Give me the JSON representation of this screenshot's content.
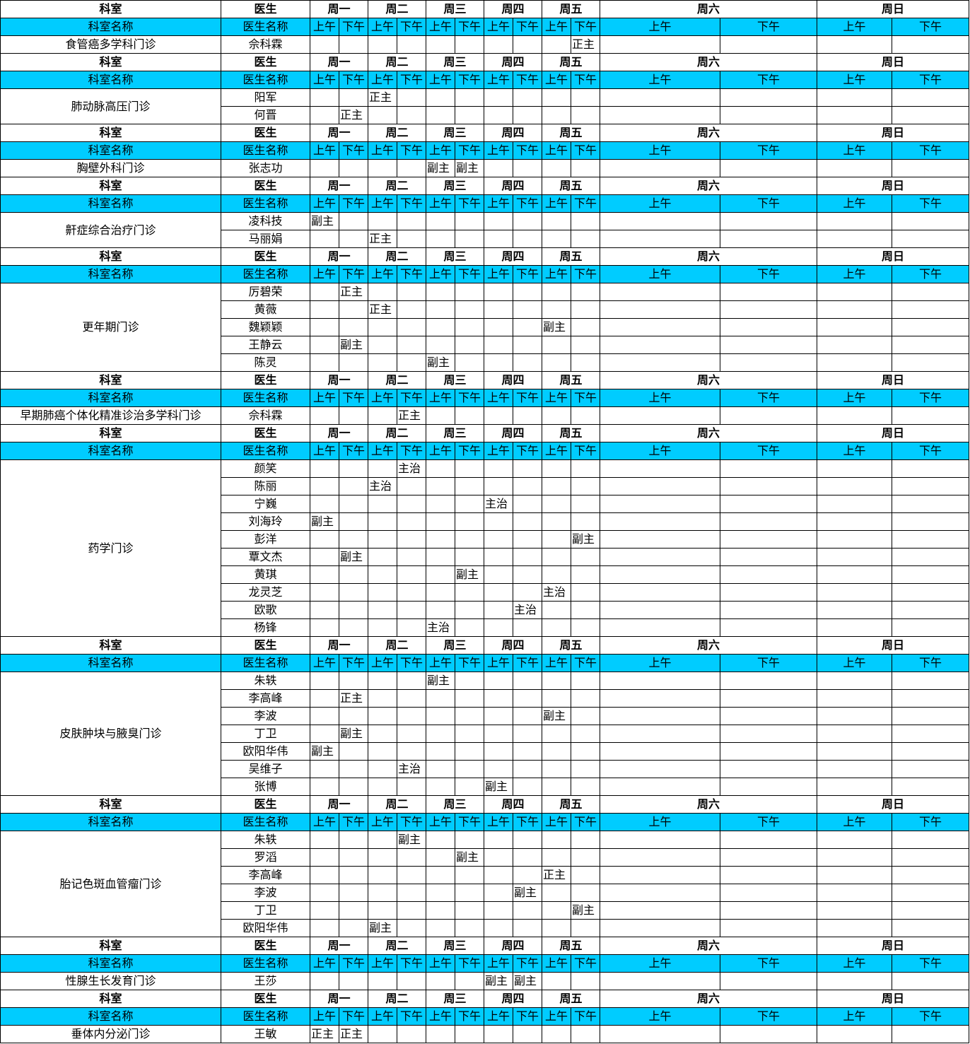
{
  "header": {
    "dept": "科室",
    "doctor": "医生",
    "days": [
      "周一",
      "周二",
      "周三",
      "周四",
      "周五",
      "周六",
      "周日"
    ]
  },
  "subheader": {
    "dept_name": "科室名称",
    "doctor_name": "医生名称",
    "am": "上午",
    "pm": "下午"
  },
  "colors": {
    "subheader_bg": "#00CCFF"
  },
  "slot_order": [
    "周一上午",
    "周一下午",
    "周二上午",
    "周二下午",
    "周三上午",
    "周三下午",
    "周四上午",
    "周四下午",
    "周五上午",
    "周五下午"
  ],
  "blocks": [
    {
      "dept": "食管癌多学科门诊",
      "doctors": [
        {
          "name": "佘科霖",
          "slots": [
            "",
            "",
            "",
            "",
            "",
            "",
            "",
            "",
            "",
            "正主"
          ]
        }
      ]
    },
    {
      "dept": "肺动脉高压门诊",
      "doctors": [
        {
          "name": "阳军",
          "slots": [
            "",
            "",
            "正主",
            "",
            "",
            "",
            "",
            "",
            "",
            ""
          ]
        },
        {
          "name": "何晋",
          "slots": [
            "",
            "正主",
            "",
            "",
            "",
            "",
            "",
            "",
            "",
            ""
          ]
        }
      ]
    },
    {
      "dept": "胸壁外科门诊",
      "doctors": [
        {
          "name": "张志功",
          "slots": [
            "",
            "",
            "",
            "",
            "副主",
            "副主",
            "",
            "",
            "",
            ""
          ]
        }
      ]
    },
    {
      "dept": "鼾症综合治疗门诊",
      "doctors": [
        {
          "name": "凌科技",
          "slots": [
            "副主",
            "",
            "",
            "",
            "",
            "",
            "",
            "",
            "",
            ""
          ]
        },
        {
          "name": "马丽娟",
          "slots": [
            "",
            "",
            "正主",
            "",
            "",
            "",
            "",
            "",
            "",
            ""
          ]
        }
      ]
    },
    {
      "dept": "更年期门诊",
      "doctors": [
        {
          "name": "厉碧荣",
          "slots": [
            "",
            "正主",
            "",
            "",
            "",
            "",
            "",
            "",
            "",
            ""
          ]
        },
        {
          "name": "黄薇",
          "slots": [
            "",
            "",
            "正主",
            "",
            "",
            "",
            "",
            "",
            "",
            ""
          ]
        },
        {
          "name": "魏颖颖",
          "slots": [
            "",
            "",
            "",
            "",
            "",
            "",
            "",
            "",
            "副主",
            ""
          ]
        },
        {
          "name": "王静云",
          "slots": [
            "",
            "副主",
            "",
            "",
            "",
            "",
            "",
            "",
            "",
            ""
          ]
        },
        {
          "name": "陈灵",
          "slots": [
            "",
            "",
            "",
            "",
            "副主",
            "",
            "",
            "",
            "",
            ""
          ]
        }
      ]
    },
    {
      "dept": "早期肺癌个体化精准诊治多学科门诊",
      "doctors": [
        {
          "name": "佘科霖",
          "slots": [
            "",
            "",
            "",
            "正主",
            "",
            "",
            "",
            "",
            "",
            ""
          ]
        }
      ]
    },
    {
      "dept": "药学门诊",
      "doctors": [
        {
          "name": "颜笑",
          "slots": [
            "",
            "",
            "",
            "主治",
            "",
            "",
            "",
            "",
            "",
            ""
          ]
        },
        {
          "name": "陈丽",
          "slots": [
            "",
            "",
            "主治",
            "",
            "",
            "",
            "",
            "",
            "",
            ""
          ]
        },
        {
          "name": "宁巍",
          "slots": [
            "",
            "",
            "",
            "",
            "",
            "",
            "主治",
            "",
            "",
            ""
          ]
        },
        {
          "name": "刘海玲",
          "slots": [
            "副主",
            "",
            "",
            "",
            "",
            "",
            "",
            "",
            "",
            ""
          ]
        },
        {
          "name": "彭洋",
          "slots": [
            "",
            "",
            "",
            "",
            "",
            "",
            "",
            "",
            "",
            "副主"
          ]
        },
        {
          "name": "覃文杰",
          "slots": [
            "",
            "副主",
            "",
            "",
            "",
            "",
            "",
            "",
            "",
            ""
          ]
        },
        {
          "name": "黄琪",
          "slots": [
            "",
            "",
            "",
            "",
            "",
            "副主",
            "",
            "",
            "",
            ""
          ]
        },
        {
          "name": "龙灵芝",
          "slots": [
            "",
            "",
            "",
            "",
            "",
            "",
            "",
            "",
            "主治",
            ""
          ]
        },
        {
          "name": "欧歌",
          "slots": [
            "",
            "",
            "",
            "",
            "",
            "",
            "",
            "主治",
            "",
            ""
          ]
        },
        {
          "name": "杨锋",
          "slots": [
            "",
            "",
            "",
            "",
            "主治",
            "",
            "",
            "",
            "",
            ""
          ]
        }
      ]
    },
    {
      "dept": "皮肤肿块与腋臭门诊",
      "doctors": [
        {
          "name": "朱轶",
          "slots": [
            "",
            "",
            "",
            "",
            "副主",
            "",
            "",
            "",
            "",
            ""
          ]
        },
        {
          "name": "李高峰",
          "slots": [
            "",
            "正主",
            "",
            "",
            "",
            "",
            "",
            "",
            "",
            ""
          ]
        },
        {
          "name": "李波",
          "slots": [
            "",
            "",
            "",
            "",
            "",
            "",
            "",
            "",
            "副主",
            ""
          ]
        },
        {
          "name": "丁卫",
          "slots": [
            "",
            "副主",
            "",
            "",
            "",
            "",
            "",
            "",
            "",
            ""
          ]
        },
        {
          "name": "欧阳华伟",
          "slots": [
            "副主",
            "",
            "",
            "",
            "",
            "",
            "",
            "",
            "",
            ""
          ]
        },
        {
          "name": "吴维子",
          "slots": [
            "",
            "",
            "",
            "主治",
            "",
            "",
            "",
            "",
            "",
            ""
          ]
        },
        {
          "name": "张博",
          "slots": [
            "",
            "",
            "",
            "",
            "",
            "",
            "副主",
            "",
            "",
            ""
          ]
        }
      ]
    },
    {
      "dept": "胎记色斑血管瘤门诊",
      "doctors": [
        {
          "name": "朱轶",
          "slots": [
            "",
            "",
            "",
            "副主",
            "",
            "",
            "",
            "",
            "",
            ""
          ]
        },
        {
          "name": "罗滔",
          "slots": [
            "",
            "",
            "",
            "",
            "",
            "副主",
            "",
            "",
            "",
            ""
          ]
        },
        {
          "name": "李高峰",
          "slots": [
            "",
            "",
            "",
            "",
            "",
            "",
            "",
            "",
            "正主",
            ""
          ]
        },
        {
          "name": "李波",
          "slots": [
            "",
            "",
            "",
            "",
            "",
            "",
            "",
            "副主",
            "",
            ""
          ]
        },
        {
          "name": "丁卫",
          "slots": [
            "",
            "",
            "",
            "",
            "",
            "",
            "",
            "",
            "",
            "副主"
          ]
        },
        {
          "name": "欧阳华伟",
          "slots": [
            "",
            "",
            "副主",
            "",
            "",
            "",
            "",
            "",
            "",
            ""
          ]
        }
      ]
    },
    {
      "dept": "性腺生长发育门诊",
      "doctors": [
        {
          "name": "王莎",
          "slots": [
            "",
            "",
            "",
            "",
            "",
            "",
            "副主",
            "副主",
            "",
            ""
          ]
        }
      ]
    },
    {
      "dept": "垂体内分泌门诊",
      "doctors": [
        {
          "name": "王敏",
          "slots": [
            "正主",
            "正主",
            "",
            "",
            "",
            "",
            "",
            "",
            "",
            ""
          ]
        }
      ]
    }
  ]
}
